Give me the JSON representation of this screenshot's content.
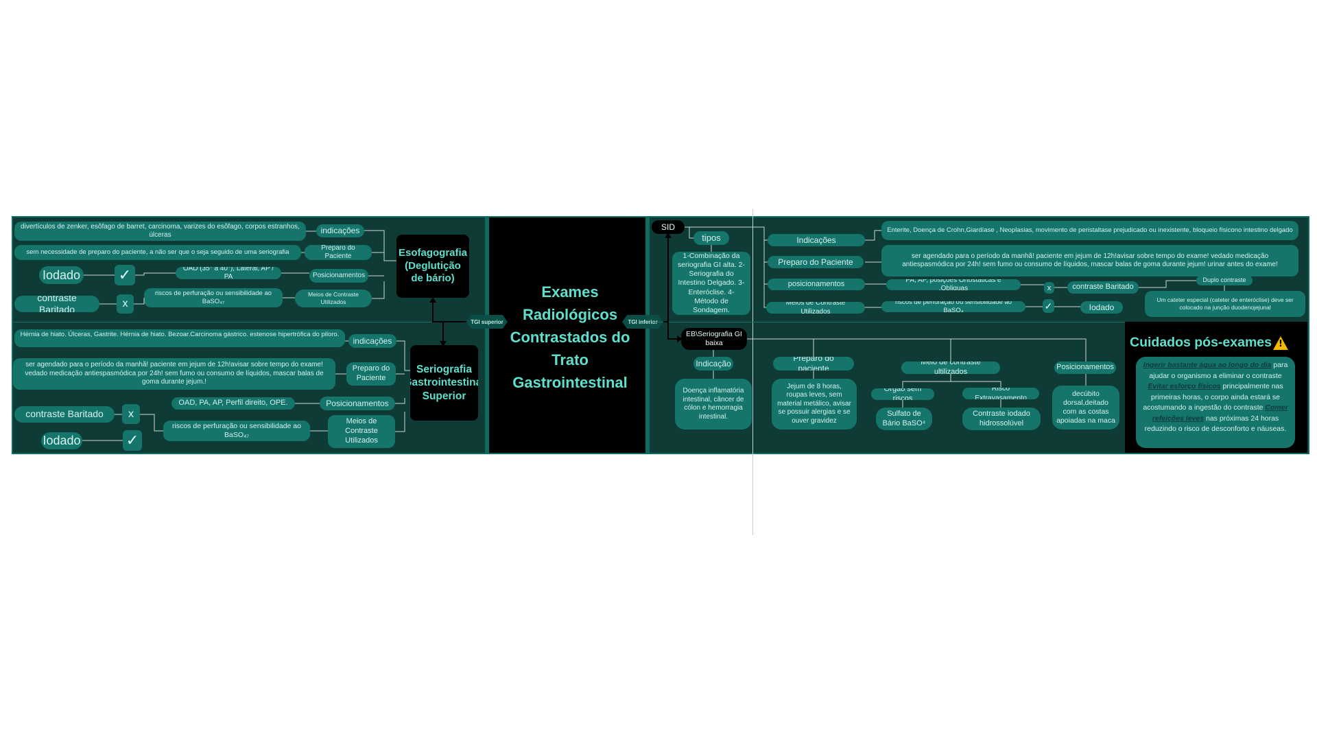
{
  "center": {
    "title": "Exames Radiológicos Contrastados do Trato Gastrointestinal"
  },
  "tags": {
    "upper": "TGI superior",
    "lower": "TGI inferior"
  },
  "esofago": {
    "title": "Esofagografia (Deglutição de bário)",
    "indicacoes_label": "indicações",
    "indicacoes_text": "divertículos de zenker, esôfago de barret, carcinoma, varizes do esôfago, corpos estranhos, úlceras",
    "preparo_label": "Preparo do Paciente",
    "preparo_text": "sem necessidade de preparo do paciente, a não ser que o seja seguido de uma seriografia",
    "posicionamentos_label": "Posicionamentos",
    "posicionamentos_text": "OAD (35° a 40°), Lateral, AP / PA",
    "meios_label": "Meios de Contraste Utilizados",
    "meios_text": "riscos de perfuração ou sensibilidade ao BaSO₄₇",
    "iodado": "Iodado",
    "baritado": "contraste Baritado",
    "check": "✓",
    "x": "x"
  },
  "seriografia": {
    "title": "Seriografia Gastrointestinal Superior",
    "indicacoes_label": "indicações",
    "indicacoes_text": "Hérnia de hiato. Úlceras, Gastrite. Hérnia de hiato. Bezoar.Carcinoma gástrico. estenose hipertrófica do piloro.",
    "preparo_label": "Preparo do Paciente",
    "preparo_text": "ser agendado para o período da manhã! paciente em jejum de 12h!avisar sobre tempo do exame! vedado medicação antiespasmódica por 24h! sem fumo ou consumo de líquidos, mascar balas de goma durante jejum.!",
    "posicionamentos_label": "Posicionamentos",
    "posicionamentos_text": "OAD, PA, AP, Perfil direito, OPE.",
    "meios_label": "Meios de Contraste Utilizados",
    "meios_text": "riscos de perfuração ou sensibilidade ao BaSO₄₇",
    "baritado": "contraste Baritado",
    "iodado": "Iodado",
    "check": "✓",
    "x": "x"
  },
  "sid": {
    "title": "SID",
    "tipos_label": "tipos",
    "tipos_text": "1-Combinação da seriografia GI alta. 2-Seriografia do Intestino Delgado. 3-Enteróclise. 4-Método de Sondagem.",
    "indicacoes_label": "Indicações",
    "indicacoes_text": "Enterite, Doença de Crohn,Giardíase , Neoplasias,  movimento de peristaltase prejudicado ou inexistente, bloqueio físicono intestino delgado",
    "preparo_label": "Preparo do Paciente",
    "preparo_text": "ser agendado para o período da manhã! paciente em jejum de 12h!avisar sobre tempo do exame! vedado medicação antiespasmódica por 24h! sem fumo ou consumo de líquidos, mascar balas de goma durante jejum! urinar antes do exame!",
    "posicionamentos_label": "posicionamentos",
    "posicionamentos_text": "PA, AP, posições Ortostáticas e .Obliquas",
    "meios_label": "Meios de Contraste Utilizados",
    "meios_text": "riscos de perfuração ou sensibilidade ao BaSO₄",
    "x": "x",
    "check": "✓",
    "baritado": "contraste Baritado",
    "iodado": "Iodado",
    "duplo": "Duplo contraste",
    "cateter": "Um cateter especial (cateter de enteróclise) deve ser colocado na junção duodenojejunal"
  },
  "eb": {
    "title": "EB\\Seriografia GI baixa",
    "indicacao_label": "Indicação",
    "indicacao_text": "Doença inflamatória intestinal, câncer de cólon e hemorragia intestinal.",
    "preparo_label": "Preparo do paciente",
    "preparo_text": "Jejum de 8 horas, roupas leves, sem material metálico, avisar se possuir alergias e se ouver gravidez",
    "meio_label": "Meio de contraste ultilizados",
    "orgao_label": "Órgão sem riscos",
    "orgao_text": "Sulfato de Bário BaSO⁴",
    "risco_label": "Risco Extravasamento",
    "risco_text": "Contraste iodado hidrossolúvel",
    "posicionamentos_label": "Posicionamentos",
    "posicionamentos_text": "decúbito dorsal,deitado com as costas apoiadas na maca"
  },
  "cuidados": {
    "title": "Cuidados pós-exames",
    "warning_icon": "warning-icon",
    "p1_em": "Ingerir bastante água ao longo do dia",
    "p1_rest": " para ajudar o organismo a eliminar o contraste",
    "p2_em": "Evitar esforço físicos",
    "p2_rest": " principalmente nas primeiras horas, o corpo ainda estará se acostumando a ingestão do contraste",
    "p3_em": "Comer refeições leves",
    "p3_rest": " nas próximas 24 horas reduzindo o risco de desconforto e náuseas."
  },
  "colors": {
    "board": "#0f3b36",
    "node": "#15756b",
    "accent": "#5fe0cf",
    "dark": "#000000"
  }
}
